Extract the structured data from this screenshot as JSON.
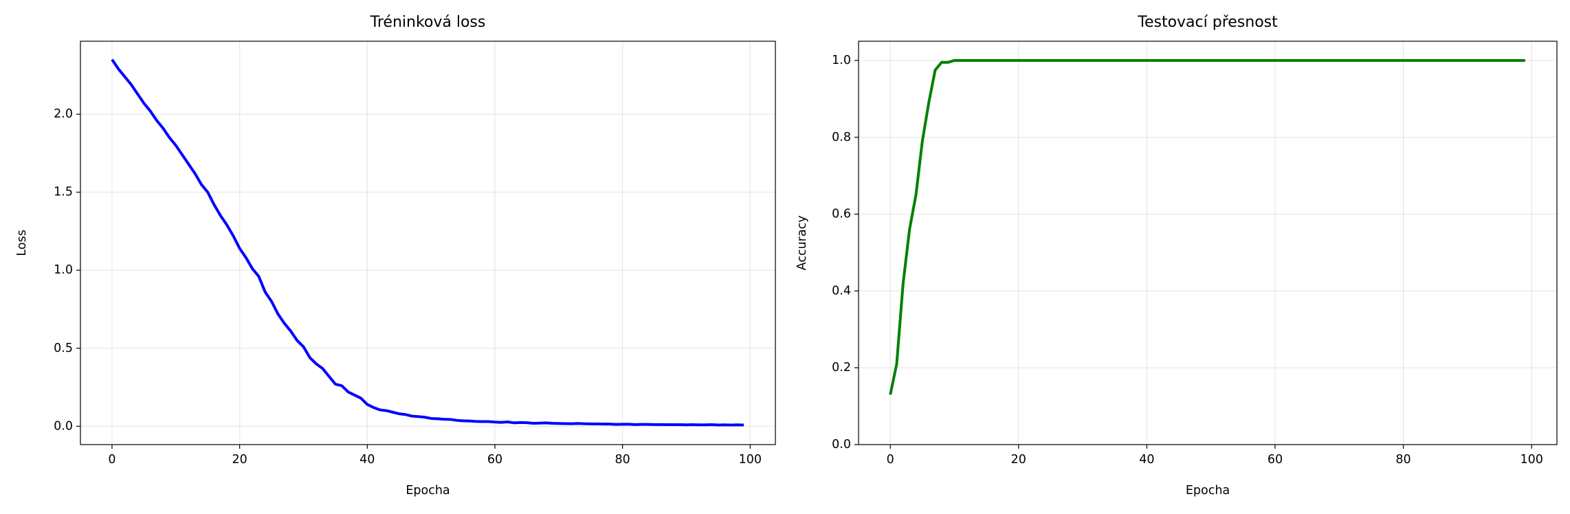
{
  "chart_data": [
    {
      "type": "line",
      "title": "Tréninková loss",
      "xlabel": "Epocha",
      "ylabel": "Loss",
      "color": "#0000ff",
      "grid": true,
      "xlim": [
        -4.95,
        103.95
      ],
      "xticks": [
        0,
        20,
        40,
        60,
        80,
        100
      ],
      "ylim": [
        -0.1175,
        2.4675
      ],
      "yticks": [
        {
          "value": 0,
          "label": "0.0"
        },
        0.5,
        {
          "value": 1,
          "label": "1.0"
        },
        1.5,
        {
          "value": 2,
          "label": "2.0"
        }
      ],
      "x": [
        0,
        1,
        2,
        3,
        4,
        5,
        6,
        7,
        8,
        9,
        10,
        11,
        12,
        13,
        14,
        15,
        16,
        17,
        18,
        19,
        20,
        21,
        22,
        23,
        24,
        25,
        26,
        27,
        28,
        29,
        30,
        31,
        32,
        33,
        34,
        35,
        36,
        37,
        38,
        39,
        40,
        41,
        42,
        43,
        44,
        45,
        46,
        47,
        48,
        49,
        50,
        51,
        52,
        53,
        54,
        55,
        56,
        57,
        58,
        59,
        60,
        61,
        62,
        63,
        64,
        65,
        66,
        67,
        68,
        69,
        70,
        71,
        72,
        73,
        74,
        75,
        76,
        77,
        78,
        79,
        80,
        81,
        82,
        83,
        84,
        85,
        86,
        87,
        88,
        89,
        90,
        91,
        92,
        93,
        94,
        95,
        96,
        97,
        98,
        99
      ],
      "values": [
        2.35,
        2.29,
        2.24,
        2.19,
        2.13,
        2.07,
        2.02,
        1.96,
        1.91,
        1.85,
        1.8,
        1.74,
        1.68,
        1.62,
        1.55,
        1.5,
        1.42,
        1.35,
        1.29,
        1.22,
        1.14,
        1.08,
        1.01,
        0.96,
        0.86,
        0.8,
        0.72,
        0.66,
        0.61,
        0.55,
        0.51,
        0.44,
        0.4,
        0.37,
        0.32,
        0.27,
        0.26,
        0.22,
        0.2,
        0.18,
        0.14,
        0.12,
        0.105,
        0.1,
        0.09,
        0.08,
        0.075,
        0.065,
        0.062,
        0.058,
        0.05,
        0.048,
        0.045,
        0.044,
        0.038,
        0.035,
        0.034,
        0.031,
        0.03,
        0.03,
        0.027,
        0.025,
        0.028,
        0.022,
        0.024,
        0.023,
        0.019,
        0.02,
        0.022,
        0.019,
        0.018,
        0.017,
        0.016,
        0.018,
        0.016,
        0.015,
        0.015,
        0.014,
        0.014,
        0.012,
        0.013,
        0.013,
        0.011,
        0.012,
        0.012,
        0.011,
        0.011,
        0.01,
        0.01,
        0.01,
        0.009,
        0.01,
        0.009,
        0.009,
        0.01,
        0.008,
        0.009,
        0.008,
        0.009,
        0.008
      ]
    },
    {
      "type": "line",
      "title": "Testovací přesnost",
      "xlabel": "Epocha",
      "ylabel": "Accuracy",
      "color": "#008000",
      "grid": true,
      "xlim": [
        -4.95,
        103.95
      ],
      "xticks": [
        0,
        20,
        40,
        60,
        80,
        100
      ],
      "ylim": [
        0,
        1.05
      ],
      "yticks": [
        {
          "value": 0,
          "label": "0.0"
        },
        0.2,
        0.4,
        0.6,
        0.8,
        {
          "value": 1,
          "label": "1.0"
        }
      ],
      "x": [
        0,
        1,
        2,
        3,
        4,
        5,
        6,
        7,
        8,
        9,
        10,
        11,
        12,
        13,
        14,
        15,
        16,
        17,
        18,
        19,
        20,
        21,
        22,
        23,
        24,
        25,
        26,
        27,
        28,
        29,
        30,
        31,
        32,
        33,
        34,
        35,
        36,
        37,
        38,
        39,
        40,
        41,
        42,
        43,
        44,
        45,
        46,
        47,
        48,
        49,
        50,
        51,
        52,
        53,
        54,
        55,
        56,
        57,
        58,
        59,
        60,
        61,
        62,
        63,
        64,
        65,
        66,
        67,
        68,
        69,
        70,
        71,
        72,
        73,
        74,
        75,
        76,
        77,
        78,
        79,
        80,
        81,
        82,
        83,
        84,
        85,
        86,
        87,
        88,
        89,
        90,
        91,
        92,
        93,
        94,
        95,
        96,
        97,
        98,
        99
      ],
      "values": [
        0.13,
        0.21,
        0.42,
        0.56,
        0.65,
        0.79,
        0.89,
        0.975,
        0.995,
        0.995,
        1.0,
        1.0,
        1.0,
        1.0,
        1.0,
        1.0,
        1.0,
        1.0,
        1.0,
        1.0,
        1.0,
        1.0,
        1.0,
        1.0,
        1.0,
        1.0,
        1.0,
        1.0,
        1.0,
        1.0,
        1.0,
        1.0,
        1.0,
        1.0,
        1.0,
        1.0,
        1.0,
        1.0,
        1.0,
        1.0,
        1.0,
        1.0,
        1.0,
        1.0,
        1.0,
        1.0,
        1.0,
        1.0,
        1.0,
        1.0,
        1.0,
        1.0,
        1.0,
        1.0,
        1.0,
        1.0,
        1.0,
        1.0,
        1.0,
        1.0,
        1.0,
        1.0,
        1.0,
        1.0,
        1.0,
        1.0,
        1.0,
        1.0,
        1.0,
        1.0,
        1.0,
        1.0,
        1.0,
        1.0,
        1.0,
        1.0,
        1.0,
        1.0,
        1.0,
        1.0,
        1.0,
        1.0,
        1.0,
        1.0,
        1.0,
        1.0,
        1.0,
        1.0,
        1.0,
        1.0,
        1.0,
        1.0,
        1.0,
        1.0,
        1.0,
        1.0,
        1.0,
        1.0,
        1.0,
        1.0
      ]
    }
  ]
}
